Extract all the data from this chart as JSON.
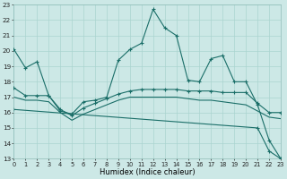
{
  "xlabel": "Humidex (Indice chaleur)",
  "xlim": [
    0,
    23
  ],
  "ylim": [
    13,
    23
  ],
  "yticks": [
    13,
    14,
    15,
    16,
    17,
    18,
    19,
    20,
    21,
    22,
    23
  ],
  "xticks": [
    0,
    1,
    2,
    3,
    4,
    5,
    6,
    7,
    8,
    9,
    10,
    11,
    12,
    13,
    14,
    15,
    16,
    17,
    18,
    19,
    20,
    21,
    22,
    23
  ],
  "bg_color": "#cce8e6",
  "grid_color": "#aad4d0",
  "line_color": "#1a6e68",
  "series1_x": [
    0,
    1,
    2,
    3,
    4,
    5,
    6,
    7,
    8,
    9,
    10,
    11,
    12,
    13,
    14,
    15,
    16,
    17,
    18,
    19,
    20,
    21,
    22,
    23
  ],
  "series1_y": [
    20.1,
    18.9,
    19.3,
    17.1,
    16.1,
    15.9,
    16.7,
    16.8,
    17.0,
    19.4,
    20.1,
    20.5,
    22.7,
    21.5,
    21.0,
    18.1,
    18.0,
    19.5,
    19.7,
    18.0,
    18.0,
    16.5,
    14.2,
    13.0
  ],
  "series2_x": [
    0,
    1,
    2,
    3,
    4,
    5,
    6,
    7,
    8,
    9,
    10,
    11,
    12,
    13,
    14,
    15,
    16,
    17,
    18,
    19,
    20,
    21,
    22,
    23
  ],
  "series2_y": [
    17.6,
    17.1,
    17.1,
    17.1,
    16.2,
    15.8,
    16.3,
    16.6,
    16.9,
    17.2,
    17.4,
    17.5,
    17.5,
    17.5,
    17.5,
    17.4,
    17.4,
    17.4,
    17.3,
    17.3,
    17.3,
    16.6,
    16.0,
    16.0
  ],
  "series3_x": [
    0,
    1,
    2,
    3,
    4,
    5,
    6,
    7,
    8,
    9,
    10,
    11,
    12,
    13,
    14,
    15,
    16,
    17,
    18,
    19,
    20,
    21,
    22,
    23
  ],
  "series3_y": [
    17.0,
    16.8,
    16.8,
    16.7,
    16.0,
    15.5,
    15.9,
    16.2,
    16.5,
    16.8,
    17.0,
    17.0,
    17.0,
    17.0,
    17.0,
    16.9,
    16.8,
    16.8,
    16.7,
    16.6,
    16.5,
    16.1,
    15.7,
    15.6
  ],
  "decline_x": [
    0,
    21,
    22,
    23
  ],
  "decline_y": [
    16.2,
    15.0,
    13.5,
    13.0
  ]
}
